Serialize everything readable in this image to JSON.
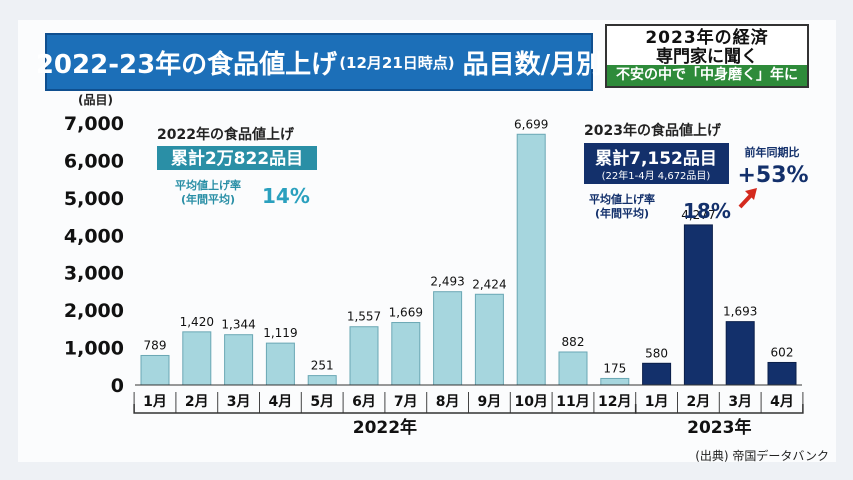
{
  "header": {
    "title_main": "2022-23年の食品値上げ",
    "title_sub": "(12月21日時点)",
    "title_tail": "品目数/月別"
  },
  "topic": {
    "line1": "2023年の経済",
    "line2": "専門家に聞く",
    "strip": "不安の中で「中身磨く」年に"
  },
  "source": "(出典) 帝国データバンク",
  "colors": {
    "y2022": "#a6d6de",
    "y2023": "#13306b",
    "title_bg": "#1c6fb8",
    "accent_arrow": "#d42a1e"
  },
  "annotations_2022": {
    "heading": "2022年の食品値上げ",
    "total": "累計2万822品目",
    "avg_label_1": "平均値上げ率",
    "avg_label_2": "(年間平均)",
    "avg_value": "14%"
  },
  "annotations_2023": {
    "heading": "2023年の食品値上げ",
    "total": "累計7,152品目",
    "total_sub": "(22年1-4月 4,672品目)",
    "avg_label_1": "平均値上げ率",
    "avg_label_2": "(年間平均)",
    "avg_value": "18%",
    "yoy_label": "前年同期比",
    "yoy_value": "+53%"
  },
  "chart_data": {
    "type": "bar",
    "title": "",
    "ylabel": "(品目)",
    "xlabel": "",
    "ylim": [
      0,
      7000
    ],
    "yticks": [
      "0",
      "1,000",
      "2,000",
      "3,000",
      "4,000",
      "5,000",
      "6,000",
      "7,000"
    ],
    "categories": [
      "1月",
      "2月",
      "3月",
      "4月",
      "5月",
      "6月",
      "7月",
      "8月",
      "9月",
      "10月",
      "11月",
      "12月",
      "1月",
      "2月",
      "3月",
      "4月"
    ],
    "values": [
      789,
      1420,
      1344,
      1119,
      251,
      1557,
      1669,
      2493,
      2424,
      6699,
      882,
      175,
      580,
      4277,
      1693,
      602
    ],
    "value_labels": [
      "789",
      "1,420",
      "1,344",
      "1,119",
      "251",
      "1,557",
      "1,669",
      "2,493",
      "2,424",
      "6,699",
      "882",
      "175",
      "580",
      "4,277",
      "1,693",
      "602"
    ],
    "year": [
      "2022",
      "2022",
      "2022",
      "2022",
      "2022",
      "2022",
      "2022",
      "2022",
      "2022",
      "2022",
      "2022",
      "2022",
      "2023",
      "2023",
      "2023",
      "2023"
    ],
    "year_labels": [
      "2022年",
      "2023年"
    ]
  }
}
